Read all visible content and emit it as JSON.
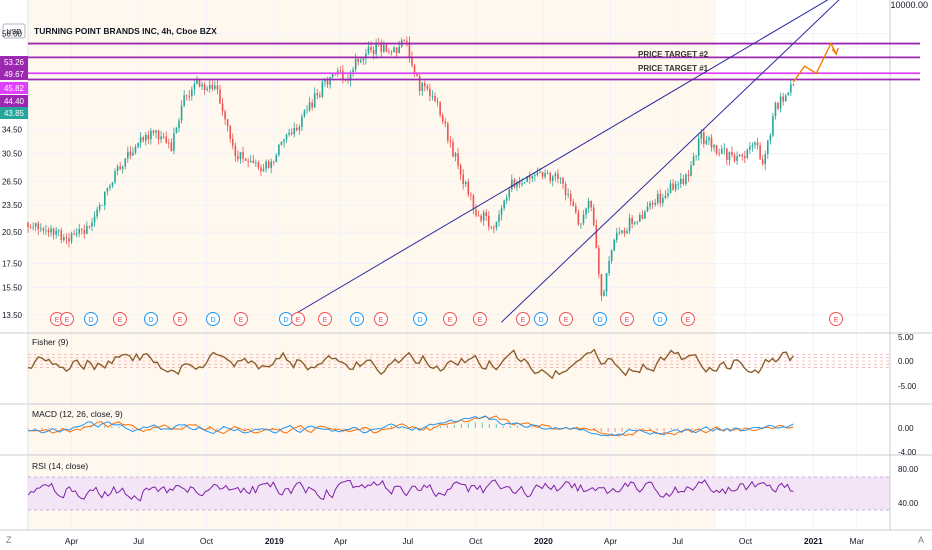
{
  "header": {
    "currency_button": "USD",
    "title": "TURNING POINT BRANDS INC, 4h, Cboe BZX",
    "top_scale_label": "10000.00"
  },
  "annotations": {
    "target2": "PRICE TARGET #2",
    "target1": "PRICE TARGET #1"
  },
  "price_badges": [
    {
      "label": "53.26",
      "value": 53.26,
      "color": "#9c27b0"
    },
    {
      "label": "49.67",
      "value": 49.67,
      "color": "#9c27b0"
    },
    {
      "label": "45.82",
      "value": 45.82,
      "color": "#e040fb"
    },
    {
      "label": "44.40",
      "value": 44.4,
      "color": "#9c27b0"
    },
    {
      "label": "43.85",
      "value": 43.85,
      "color": "#26a69a"
    }
  ],
  "price_axis_ticks": [
    "56.00",
    "34.50",
    "30.50",
    "26.50",
    "23.50",
    "20.50",
    "17.50",
    "15.50",
    "13.50"
  ],
  "panes": {
    "fisher": {
      "label": "Fisher (9)",
      "ticks": [
        "5.00",
        "0.00",
        "-5.00"
      ]
    },
    "macd": {
      "label": "MACD (12, 26, close, 9)",
      "ticks": [
        "0.00",
        "-4.00"
      ]
    },
    "rsi": {
      "label": "RSI (14, close)",
      "ticks": [
        "80.00",
        "40.00"
      ]
    }
  },
  "time_axis": [
    "Apr",
    "Jul",
    "Oct",
    "2019",
    "Apr",
    "Jul",
    "Oct",
    "2020",
    "Apr",
    "Jul",
    "Oct",
    "2021",
    "Mar"
  ],
  "footer": {
    "left_button": "Z",
    "right_button": "A"
  },
  "events": [
    "E",
    "E",
    "D",
    "E",
    "D",
    "E",
    "D",
    "E",
    "D",
    "E",
    "E",
    "D",
    "E",
    "D",
    "E",
    "E",
    "E",
    "D",
    "E",
    "D",
    "E",
    "D",
    "E",
    "E"
  ],
  "colors": {
    "up_candle": "#26a69a",
    "down_candle": "#ef5350",
    "trend_line": "#2a2aa0",
    "target_line": "#9c27b0",
    "forecast_arrow": "#f57c00",
    "fisher_line": "#7b5a3a",
    "macd_line": "#2196f3",
    "signal_line": "#ff6d00",
    "rsi_line": "#7e1fa8"
  },
  "chart_data": {
    "type": "candlestick",
    "symbol": "TURNING POINT BRANDS INC",
    "timeframe": "4h",
    "exchange": "Cboe BZX",
    "scale": "log",
    "y_range": [
      12.5,
      60
    ],
    "x_range": [
      "2018-02-01",
      "2021-04-15"
    ],
    "price_path": [
      {
        "date": "2018-02-01",
        "close": 21.5
      },
      {
        "date": "2018-03-20",
        "close": 20.0
      },
      {
        "date": "2018-04-20",
        "close": 20.5
      },
      {
        "date": "2018-05-20",
        "close": 25.5
      },
      {
        "date": "2018-06-20",
        "close": 31.0
      },
      {
        "date": "2018-07-20",
        "close": 34.0
      },
      {
        "date": "2018-08-15",
        "close": 31.5
      },
      {
        "date": "2018-09-01",
        "close": 40.5
      },
      {
        "date": "2018-09-20",
        "close": 43.5
      },
      {
        "date": "2018-10-15",
        "close": 42.5
      },
      {
        "date": "2018-11-10",
        "close": 30.5
      },
      {
        "date": "2018-12-15",
        "close": 28.0
      },
      {
        "date": "2019-01-10",
        "close": 31.5
      },
      {
        "date": "2019-02-15",
        "close": 38.0
      },
      {
        "date": "2019-03-20",
        "close": 46.0
      },
      {
        "date": "2019-04-10",
        "close": 45.0
      },
      {
        "date": "2019-05-01",
        "close": 50.5
      },
      {
        "date": "2019-05-25",
        "close": 52.5
      },
      {
        "date": "2019-06-10",
        "close": 51.5
      },
      {
        "date": "2019-06-28",
        "close": 53.5
      },
      {
        "date": "2019-07-15",
        "close": 43.5
      },
      {
        "date": "2019-08-10",
        "close": 39.5
      },
      {
        "date": "2019-09-01",
        "close": 30.5
      },
      {
        "date": "2019-10-01",
        "close": 23.0
      },
      {
        "date": "2019-10-25",
        "close": 21.0
      },
      {
        "date": "2019-11-20",
        "close": 26.5
      },
      {
        "date": "2019-12-20",
        "close": 27.0
      },
      {
        "date": "2020-01-20",
        "close": 27.5
      },
      {
        "date": "2020-02-20",
        "close": 21.5
      },
      {
        "date": "2020-03-05",
        "close": 24.5
      },
      {
        "date": "2020-03-20",
        "close": 14.5
      },
      {
        "date": "2020-04-01",
        "close": 19.0
      },
      {
        "date": "2020-04-20",
        "close": 21.0
      },
      {
        "date": "2020-05-20",
        "close": 23.0
      },
      {
        "date": "2020-06-20",
        "close": 25.5
      },
      {
        "date": "2020-07-15",
        "close": 27.0
      },
      {
        "date": "2020-08-01",
        "close": 33.5
      },
      {
        "date": "2020-08-20",
        "close": 31.5
      },
      {
        "date": "2020-09-20",
        "close": 29.5
      },
      {
        "date": "2020-10-15",
        "close": 31.5
      },
      {
        "date": "2020-10-25",
        "close": 29.0
      },
      {
        "date": "2020-11-10",
        "close": 38.5
      },
      {
        "date": "2020-12-05",
        "close": 43.85
      }
    ],
    "forecast_path": [
      {
        "date": "2020-12-05",
        "value": 43.85
      },
      {
        "date": "2020-12-20",
        "value": 47.5
      },
      {
        "date": "2021-01-05",
        "value": 45.82
      },
      {
        "date": "2021-01-25",
        "value": 53.26
      },
      {
        "date": "2021-02-01",
        "value": 50.5
      }
    ],
    "trend_lines": [
      {
        "from": {
          "date": "2019-01-10",
          "value": 13.0
        },
        "to": {
          "date": "2021-04-15",
          "value": 80.0
        }
      },
      {
        "from": {
          "date": "2019-11-05",
          "value": 13.0
        },
        "to": {
          "date": "2021-04-15",
          "value": 85.0
        }
      }
    ],
    "horizontal_levels": [
      53.26,
      49.67,
      45.82,
      44.4
    ],
    "indicators": {
      "fisher": {
        "period": 9,
        "range": [
          -6,
          6
        ]
      },
      "macd": {
        "fast": 12,
        "slow": 26,
        "source": "close",
        "signal": 9,
        "range": [
          -5,
          3
        ]
      },
      "rsi": {
        "period": 14,
        "source": "close",
        "range": [
          20,
          90
        ],
        "levels": [
          70,
          30
        ]
      }
    }
  }
}
